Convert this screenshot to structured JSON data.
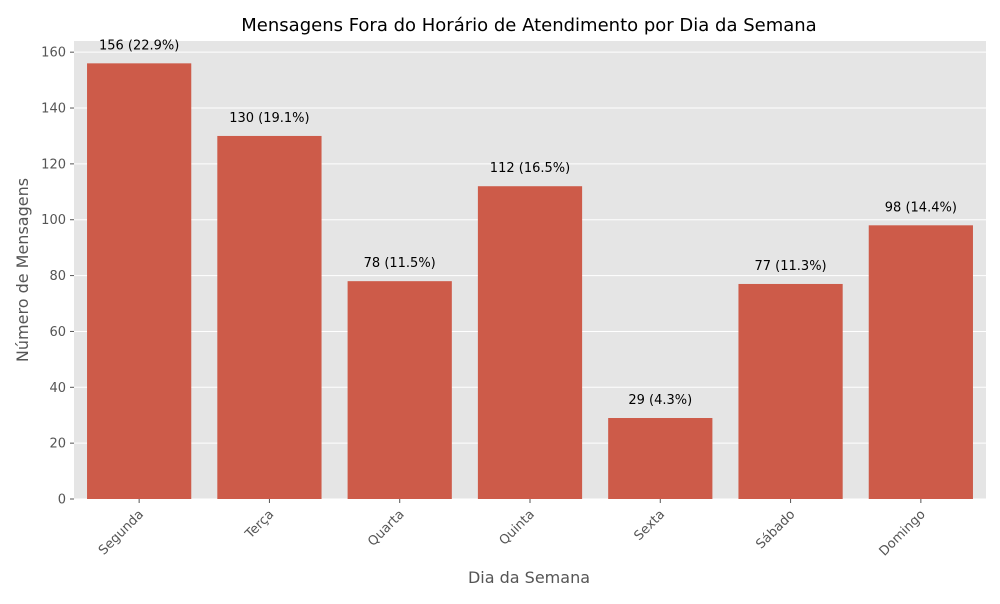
{
  "chart_data": {
    "type": "bar",
    "title": "Mensagens Fora do Horário de Atendimento por Dia da Semana",
    "xlabel": "Dia da Semana",
    "ylabel": "Número de Mensagens",
    "categories": [
      "Segunda",
      "Terça",
      "Quarta",
      "Quinta",
      "Sexta",
      "Sábado",
      "Domingo"
    ],
    "values": [
      156,
      130,
      78,
      112,
      29,
      77,
      98
    ],
    "data_labels": [
      "156 (22.9%)",
      "130 (19.1%)",
      "78 (11.5%)",
      "112 (16.5%)",
      "29 (4.3%)",
      "77 (11.3%)",
      "98 (14.4%)"
    ],
    "ylim": [
      0,
      164
    ],
    "yticks": [
      0,
      20,
      40,
      60,
      80,
      100,
      120,
      140,
      160
    ],
    "grid": true,
    "colors": {
      "bar": "#cd5b49",
      "plot_background": "#e5e5e5",
      "grid": "#ffffff",
      "tick_text": "#555555",
      "label_text": "#555555",
      "title_text": "#000000",
      "data_label_text": "#000000"
    }
  }
}
